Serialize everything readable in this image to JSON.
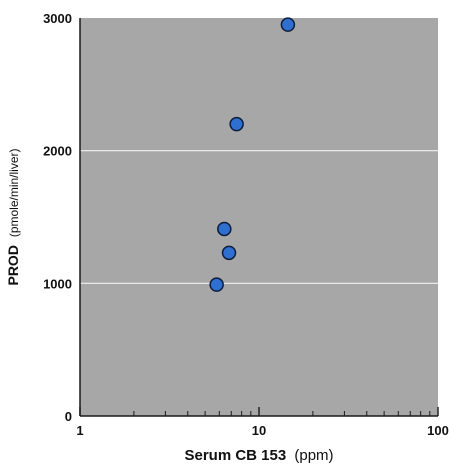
{
  "chart_data": {
    "type": "scatter",
    "title": "",
    "xlabel": {
      "main": "Serum CB 153",
      "unit": "(ppm)"
    },
    "ylabel": {
      "main": "PROD",
      "unit": "(pmole/min/liver)"
    },
    "x_scale": "log",
    "xlim": [
      1,
      100
    ],
    "ylim": [
      0,
      3000
    ],
    "x_ticks": [
      "1",
      "10",
      "100"
    ],
    "y_ticks": [
      "0",
      "1000",
      "2000",
      "3000"
    ],
    "grid": "horizontal",
    "points": [
      {
        "x": 14.5,
        "y": 2950
      },
      {
        "x": 7.5,
        "y": 2200
      },
      {
        "x": 6.4,
        "y": 1410
      },
      {
        "x": 6.8,
        "y": 1230
      },
      {
        "x": 5.8,
        "y": 990
      }
    ]
  },
  "colors": {
    "plot_background": "#a7a7a7",
    "gridline": "#f2f2f2",
    "point_fill": "#2f6fd0",
    "point_stroke": "#0d1c3a",
    "axis": "#1a1a1a"
  }
}
